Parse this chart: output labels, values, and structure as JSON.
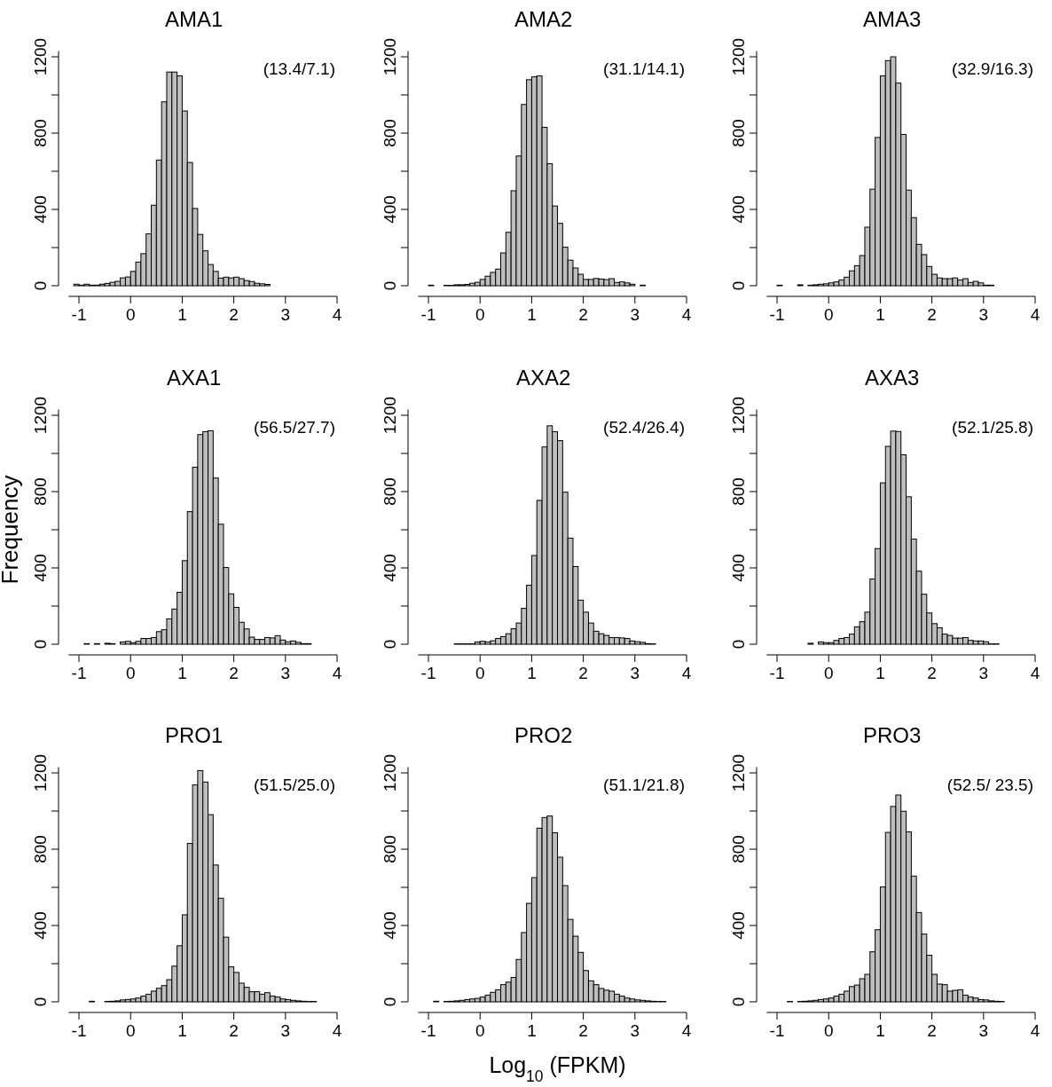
{
  "chart_data": [
    {
      "type": "histogram",
      "title": "AMA1",
      "annotations": [
        "(13.4/7.1)"
      ],
      "color": "#bebebe",
      "xlim": [
        -1.2,
        4
      ],
      "ylim": [
        0,
        1230
      ],
      "xticks": [
        -1,
        0,
        1,
        2,
        3,
        4
      ],
      "yticks": [
        0,
        {
          "value": 200,
          "label": null
        },
        400,
        {
          "value": 600,
          "label": null
        },
        800,
        {
          "value": 1000,
          "label": null
        },
        1200
      ],
      "bins": [
        -1.2,
        -1.1,
        -1,
        -0.9,
        -0.8,
        -0.7,
        -0.6,
        -0.5,
        -0.4,
        -0.3,
        -0.2,
        -0.1,
        0,
        0.1,
        0.2,
        0.3,
        0.4,
        0.5,
        0.6,
        0.7,
        0.8,
        0.9,
        1,
        1.1,
        1.2,
        1.3,
        1.4,
        1.5,
        1.6,
        1.7,
        1.8,
        1.9,
        2,
        2.1,
        2.2,
        2.3,
        2.4,
        2.5,
        2.6,
        2.7,
        2.8,
        2.9,
        3,
        3.1,
        3.2,
        3.3,
        3.4
      ],
      "values": [
        0,
        8,
        3,
        8,
        3,
        3,
        8,
        12,
        18,
        23,
        41,
        46,
        75,
        124,
        168,
        272,
        422,
        659,
        964,
        1120,
        1120,
        1100,
        916,
        646,
        405,
        269,
        183,
        111,
        75,
        40,
        45,
        41,
        45,
        37,
        27,
        22,
        13,
        10,
        7,
        0,
        0,
        0,
        0,
        0,
        0,
        0
      ]
    },
    {
      "type": "histogram",
      "title": "AMA2",
      "annotations": [
        "(31.1/14.1)"
      ],
      "color": "#bebebe",
      "xlim": [
        -1.2,
        4
      ],
      "ylim": [
        0,
        1230
      ],
      "xticks": [
        -1,
        0,
        1,
        2,
        3,
        4
      ],
      "yticks": [
        0,
        {
          "value": 200,
          "label": null
        },
        400,
        {
          "value": 600,
          "label": null
        },
        800,
        {
          "value": 1000,
          "label": null
        },
        1200
      ],
      "bins": [
        -1,
        -0.9,
        -0.8,
        -0.7,
        -0.6,
        -0.5,
        -0.4,
        -0.3,
        -0.2,
        -0.1,
        0,
        0.1,
        0.2,
        0.3,
        0.4,
        0.5,
        0.6,
        0.7,
        0.8,
        0.9,
        1,
        1.1,
        1.2,
        1.3,
        1.4,
        1.5,
        1.6,
        1.7,
        1.8,
        1.9,
        2,
        2.1,
        2.2,
        2.3,
        2.4,
        2.5,
        2.6,
        2.7,
        2.8,
        2.9,
        3,
        3.1,
        3.2,
        3.3,
        3.4,
        3.5,
        3.6,
        3.7
      ],
      "values": [
        3,
        0,
        0,
        2,
        2,
        5,
        5,
        7,
        13,
        18,
        33,
        50,
        70,
        87,
        172,
        280,
        498,
        680,
        950,
        1080,
        1095,
        1100,
        830,
        640,
        418,
        327,
        202,
        134,
        93,
        60,
        33,
        33,
        38,
        35,
        32,
        37,
        17,
        20,
        15,
        8,
        0,
        3,
        0,
        0,
        0,
        0,
        0
      ]
    },
    {
      "type": "histogram",
      "title": "AMA3",
      "annotations": [
        "(32.9/16.3)"
      ],
      "color": "#bebebe",
      "xlim": [
        -1.2,
        4
      ],
      "ylim": [
        0,
        1230
      ],
      "xticks": [
        -1,
        0,
        1,
        2,
        3,
        4
      ],
      "yticks": [
        0,
        {
          "value": 200,
          "label": null
        },
        400,
        {
          "value": 600,
          "label": null
        },
        800,
        {
          "value": 1000,
          "label": null
        },
        1200
      ],
      "bins": [
        -1,
        -0.9,
        -0.8,
        -0.7,
        -0.6,
        -0.5,
        -0.4,
        -0.3,
        -0.2,
        -0.1,
        0,
        0.1,
        0.2,
        0.3,
        0.4,
        0.5,
        0.6,
        0.7,
        0.8,
        0.9,
        1,
        1.1,
        1.2,
        1.3,
        1.4,
        1.5,
        1.6,
        1.7,
        1.8,
        1.9,
        2,
        2.1,
        2.2,
        2.3,
        2.4,
        2.5,
        2.6,
        2.7,
        2.8,
        2.9,
        3,
        3.1,
        3.2,
        3.3,
        3.4,
        3.5,
        3.6,
        3.7,
        3.8
      ],
      "values": [
        3,
        0,
        0,
        0,
        5,
        0,
        3,
        5,
        8,
        10,
        15,
        20,
        30,
        45,
        78,
        105,
        158,
        307,
        506,
        777,
        1100,
        1180,
        1200,
        1062,
        793,
        501,
        357,
        217,
        163,
        101,
        60,
        41,
        37,
        37,
        41,
        30,
        37,
        17,
        23,
        15,
        3,
        3,
        0,
        0,
        0,
        0,
        0,
        0
      ]
    },
    {
      "type": "histogram",
      "title": "AXA1",
      "ylabel": "Frequency",
      "annotations": [
        "(56.5/27.7)"
      ],
      "color": "#bebebe",
      "xlim": [
        -1.2,
        4
      ],
      "ylim": [
        0,
        1230
      ],
      "xticks": [
        -1,
        0,
        1,
        2,
        3,
        4
      ],
      "yticks": [
        0,
        {
          "value": 200,
          "label": null
        },
        400,
        {
          "value": 600,
          "label": null
        },
        800,
        {
          "value": 1000,
          "label": null
        },
        1200
      ],
      "bins": [
        -1,
        -0.9,
        -0.8,
        -0.7,
        -0.6,
        -0.5,
        -0.4,
        -0.3,
        -0.2,
        -0.1,
        0,
        0.1,
        0.2,
        0.3,
        0.4,
        0.5,
        0.6,
        0.7,
        0.8,
        0.9,
        1,
        1.1,
        1.2,
        1.3,
        1.4,
        1.5,
        1.6,
        1.7,
        1.8,
        1.9,
        2,
        2.1,
        2.2,
        2.3,
        2.4,
        2.5,
        2.6,
        2.7,
        2.8,
        2.9,
        3,
        3.1,
        3.2,
        3.3,
        3.4,
        3.5,
        3.6,
        3.7,
        3.8,
        3.9,
        4
      ],
      "values": [
        0,
        3,
        0,
        3,
        0,
        5,
        3,
        0,
        12,
        15,
        8,
        15,
        30,
        30,
        35,
        66,
        76,
        133,
        184,
        272,
        438,
        695,
        928,
        1099,
        1114,
        1119,
        871,
        629,
        402,
        264,
        193,
        115,
        80,
        37,
        25,
        25,
        35,
        33,
        45,
        22,
        13,
        17,
        10,
        3,
        3,
        0,
        0,
        0,
        0,
        0
      ]
    },
    {
      "type": "histogram",
      "title": "AXA2",
      "annotations": [
        "(52.4/26.4)"
      ],
      "color": "#bebebe",
      "xlim": [
        -1.2,
        4
      ],
      "ylim": [
        0,
        1230
      ],
      "xticks": [
        -1,
        0,
        1,
        2,
        3,
        4
      ],
      "yticks": [
        0,
        {
          "value": 200,
          "label": null
        },
        400,
        {
          "value": 600,
          "label": null
        },
        800,
        {
          "value": 1000,
          "label": null
        },
        1200
      ],
      "bins": [
        -1,
        -0.9,
        -0.8,
        -0.7,
        -0.6,
        -0.5,
        -0.4,
        -0.3,
        -0.2,
        -0.1,
        0,
        0.1,
        0.2,
        0.3,
        0.4,
        0.5,
        0.6,
        0.7,
        0.8,
        0.9,
        1,
        1.1,
        1.2,
        1.3,
        1.4,
        1.5,
        1.6,
        1.7,
        1.8,
        1.9,
        2,
        2.1,
        2.2,
        2.3,
        2.4,
        2.5,
        2.6,
        2.7,
        2.8,
        2.9,
        3,
        3.1,
        3.2,
        3.3,
        3.4,
        3.5,
        3.6,
        3.7,
        3.8
      ],
      "values": [
        0,
        0,
        0,
        0,
        0,
        2,
        2,
        2,
        2,
        12,
        15,
        12,
        18,
        30,
        40,
        55,
        81,
        111,
        188,
        309,
        465,
        754,
        1034,
        1145,
        1114,
        1067,
        797,
        556,
        407,
        231,
        168,
        111,
        68,
        55,
        46,
        35,
        35,
        33,
        30,
        17,
        13,
        10,
        3,
        2,
        0,
        0,
        0,
        0
      ]
    },
    {
      "type": "histogram",
      "title": "AXA3",
      "annotations": [
        "(52.1/25.8)"
      ],
      "color": "#bebebe",
      "xlim": [
        -1.2,
        4
      ],
      "ylim": [
        0,
        1230
      ],
      "xticks": [
        -1,
        0,
        1,
        2,
        3,
        4
      ],
      "yticks": [
        0,
        {
          "value": 200,
          "label": null
        },
        400,
        {
          "value": 600,
          "label": null
        },
        800,
        {
          "value": 1000,
          "label": null
        },
        1200
      ],
      "bins": [
        -1,
        -0.9,
        -0.8,
        -0.7,
        -0.6,
        -0.5,
        -0.4,
        -0.3,
        -0.2,
        -0.1,
        0,
        0.1,
        0.2,
        0.3,
        0.4,
        0.5,
        0.6,
        0.7,
        0.8,
        0.9,
        1,
        1.1,
        1.2,
        1.3,
        1.4,
        1.5,
        1.6,
        1.7,
        1.8,
        1.9,
        2,
        2.1,
        2.2,
        2.3,
        2.4,
        2.5,
        2.6,
        2.7,
        2.8,
        2.9,
        3,
        3.1,
        3.2,
        3.3,
        3.4,
        3.5,
        3.6,
        3.7,
        3.8
      ],
      "values": [
        0,
        0,
        0,
        0,
        0,
        0,
        5,
        0,
        12,
        8,
        8,
        20,
        30,
        35,
        53,
        91,
        118,
        168,
        342,
        501,
        846,
        1037,
        1117,
        1115,
        993,
        773,
        551,
        383,
        262,
        164,
        108,
        86,
        53,
        46,
        32,
        32,
        35,
        20,
        17,
        17,
        13,
        2,
        2,
        0,
        0,
        0,
        0,
        0
      ]
    },
    {
      "type": "histogram",
      "title": "PRO1",
      "annotations": [
        "(51.5/25.0)"
      ],
      "color": "#bebebe",
      "xlim": [
        -1.2,
        4
      ],
      "ylim": [
        0,
        1230
      ],
      "xticks": [
        -1,
        0,
        1,
        2,
        3,
        4
      ],
      "yticks": [
        0,
        {
          "value": 200,
          "label": null
        },
        400,
        {
          "value": 600,
          "label": null
        },
        800,
        {
          "value": 1000,
          "label": null
        },
        1200
      ],
      "bins": [
        -1,
        -0.9,
        -0.8,
        -0.7,
        -0.6,
        -0.5,
        -0.4,
        -0.3,
        -0.2,
        -0.1,
        0,
        0.1,
        0.2,
        0.3,
        0.4,
        0.5,
        0.6,
        0.7,
        0.8,
        0.9,
        1,
        1.1,
        1.2,
        1.3,
        1.4,
        1.5,
        1.6,
        1.7,
        1.8,
        1.9,
        2,
        2.1,
        2.2,
        2.3,
        2.4,
        2.5,
        2.6,
        2.7,
        2.8,
        2.9,
        3,
        3.1,
        3.2,
        3.3,
        3.4,
        3.5,
        3.6,
        3.7,
        3.8
      ],
      "values": [
        0,
        0,
        3,
        0,
        0,
        2,
        3,
        5,
        10,
        12,
        15,
        20,
        30,
        40,
        56,
        71,
        85,
        116,
        187,
        294,
        456,
        830,
        1137,
        1212,
        1152,
        981,
        717,
        543,
        339,
        183,
        154,
        98,
        76,
        53,
        53,
        40,
        48,
        30,
        25,
        15,
        12,
        8,
        5,
        3,
        2,
        2,
        0,
        0
      ]
    },
    {
      "type": "histogram",
      "title": "PRO2",
      "xlabel": "Log$_{10}$ (FPKM)",
      "annotations": [
        "(51.1/21.8)"
      ],
      "color": "#bebebe",
      "xlim": [
        -1.2,
        4
      ],
      "ylim": [
        0,
        1230
      ],
      "xticks": [
        -1,
        0,
        1,
        2,
        3,
        4
      ],
      "yticks": [
        0,
        {
          "value": 200,
          "label": null
        },
        400,
        {
          "value": 600,
          "label": null
        },
        800,
        {
          "value": 1000,
          "label": null
        },
        1200
      ],
      "bins": [
        -1,
        -0.9,
        -0.8,
        -0.7,
        -0.6,
        -0.5,
        -0.4,
        -0.3,
        -0.2,
        -0.1,
        0,
        0.1,
        0.2,
        0.3,
        0.4,
        0.5,
        0.6,
        0.7,
        0.8,
        0.9,
        1,
        1.1,
        1.2,
        1.3,
        1.4,
        1.5,
        1.6,
        1.7,
        1.8,
        1.9,
        2,
        2.1,
        2.2,
        2.3,
        2.4,
        2.5,
        2.6,
        2.7,
        2.8,
        2.9,
        3,
        3.1,
        3.2,
        3.3,
        3.4,
        3.5,
        3.6,
        3.7
      ],
      "values": [
        0,
        3,
        0,
        2,
        3,
        5,
        8,
        12,
        15,
        18,
        25,
        35,
        50,
        63,
        90,
        103,
        128,
        222,
        363,
        516,
        651,
        910,
        966,
        974,
        886,
        758,
        609,
        432,
        344,
        259,
        164,
        110,
        90,
        70,
        61,
        56,
        40,
        30,
        20,
        15,
        10,
        8,
        5,
        3,
        2,
        2,
        0
      ]
    },
    {
      "type": "histogram",
      "title": "PRO3",
      "annotations": [
        "(52.5/ 23.5)"
      ],
      "color": "#bebebe",
      "xlim": [
        -1.2,
        4
      ],
      "ylim": [
        0,
        1230
      ],
      "xticks": [
        -1,
        0,
        1,
        2,
        3,
        4
      ],
      "yticks": [
        0,
        {
          "value": 200,
          "label": null
        },
        400,
        {
          "value": 600,
          "label": null
        },
        800,
        {
          "value": 1000,
          "label": null
        },
        1200
      ],
      "bins": [
        -1,
        -0.9,
        -0.8,
        -0.7,
        -0.6,
        -0.5,
        -0.4,
        -0.3,
        -0.2,
        -0.1,
        0,
        0.1,
        0.2,
        0.3,
        0.4,
        0.5,
        0.6,
        0.7,
        0.8,
        0.9,
        1,
        1.1,
        1.2,
        1.3,
        1.4,
        1.5,
        1.6,
        1.7,
        1.8,
        1.9,
        2,
        2.1,
        2.2,
        2.3,
        2.4,
        2.5,
        2.6,
        2.7,
        2.8,
        2.9,
        3,
        3.1,
        3.2,
        3.3,
        3.4,
        3.5,
        3.6,
        3.7,
        3.8
      ],
      "values": [
        0,
        0,
        2,
        0,
        2,
        3,
        5,
        8,
        12,
        15,
        20,
        30,
        40,
        56,
        80,
        88,
        121,
        144,
        262,
        378,
        602,
        888,
        1024,
        1084,
        999,
        891,
        659,
        468,
        355,
        244,
        144,
        93,
        90,
        56,
        60,
        63,
        35,
        25,
        20,
        12,
        10,
        5,
        3,
        2,
        0,
        0,
        0,
        0
      ]
    }
  ]
}
